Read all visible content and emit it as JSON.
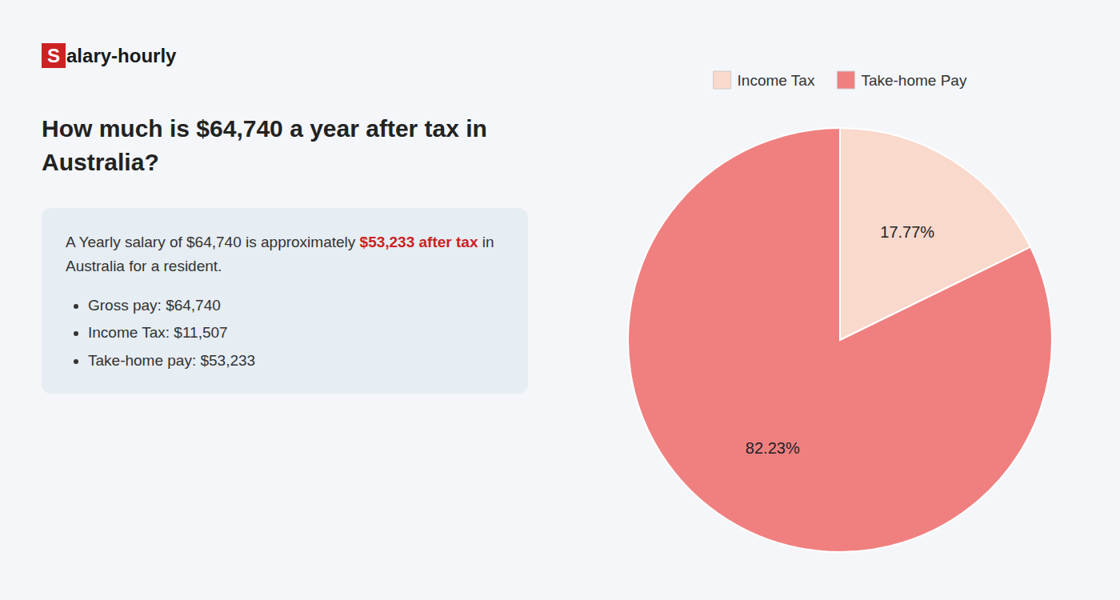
{
  "chart_data": {
    "type": "pie",
    "title": "How much is $64,740 a year after tax in Australia?",
    "categories": [
      "Income Tax",
      "Take-home Pay"
    ],
    "values": [
      17.77,
      82.23
    ],
    "colors": [
      "#f9d9cc",
      "#f08080"
    ],
    "data_labels": true,
    "value_labels": [
      "17.77%",
      "82.23%"
    ],
    "legend": "top",
    "annotations": [
      [
        [
          {
            "text": "S",
            "color": "#cc2222"
          },
          {
            "text": "alary-hourly"
          }
        ]
      ],
      [
        [
          {
            "text": "A Yearly salary of $64,740 is approximately "
          },
          {
            "text": "$53,233 after tax",
            "color": "#cc2222"
          },
          {
            "text": " in"
          }
        ],
        [
          {
            "text": "Australia for a resident."
          }
        ]
      ],
      [
        [
          {
            "text": "Gross pay: $64,740"
          }
        ],
        [
          {
            "text": "Income Tax: $11,507"
          }
        ],
        [
          {
            "text": "Take-home pay: $53,233"
          }
        ]
      ]
    ]
  }
}
